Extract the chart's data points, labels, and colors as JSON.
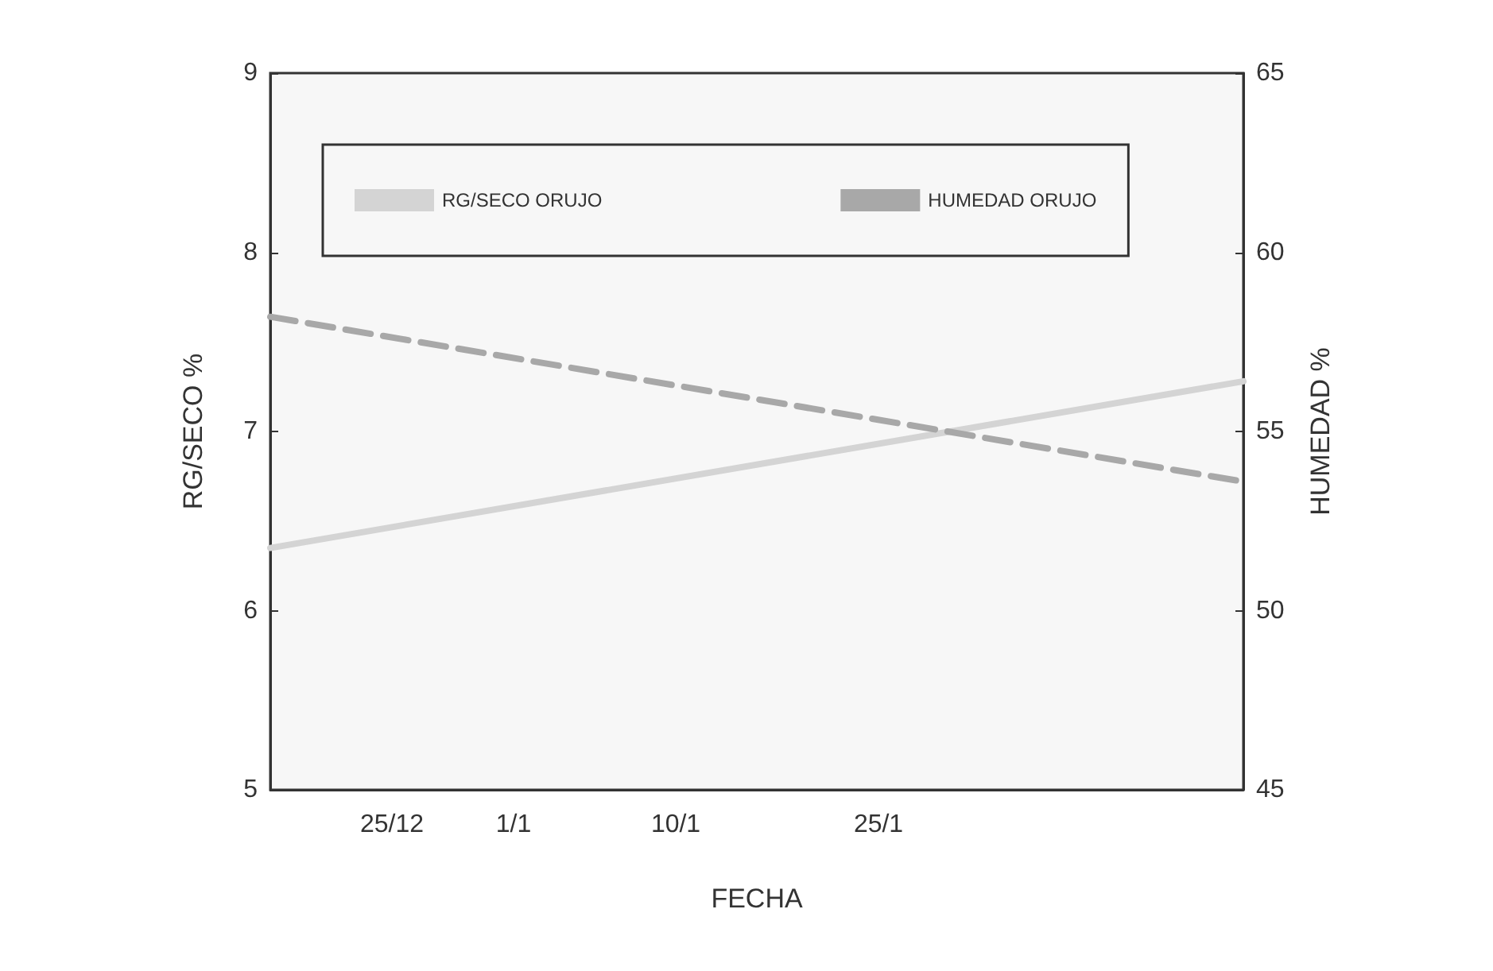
{
  "chart_data": {
    "type": "line",
    "xlabel": "FECHA",
    "ylabel": "RG/SECO %",
    "y2label": "HUMEDAD %",
    "categories": [
      null,
      null,
      null,
      "25/12",
      null,
      null,
      "1/1",
      null,
      null,
      null,
      "10/1",
      null,
      null,
      null,
      null,
      "25/1",
      null,
      null,
      null,
      null,
      null,
      null,
      null,
      null,
      null
    ],
    "series": [
      {
        "name": "RG/SECO ORUJO",
        "color": "#d4d4d4",
        "line_style": "solid",
        "values": [
          6.35,
          null,
          null,
          null,
          null,
          null,
          null,
          null,
          null,
          null,
          null,
          null,
          null,
          null,
          null,
          null,
          null,
          null,
          null,
          null,
          null,
          null,
          null,
          null,
          7.28
        ]
      },
      {
        "name": "HUMEDAD ORUJO",
        "color": "#a8a8a8",
        "line_style": "dashed",
        "axis": "y2",
        "values": [
          58.2,
          null,
          null,
          null,
          null,
          null,
          null,
          null,
          null,
          null,
          null,
          null,
          null,
          null,
          null,
          null,
          null,
          null,
          null,
          null,
          null,
          null,
          null,
          null,
          53.6
        ]
      }
    ],
    "ylim": [
      5,
      9
    ],
    "yticks": [
      5,
      6,
      7,
      8,
      9
    ],
    "y2lim": [
      45,
      65
    ],
    "y2ticks": [
      45,
      50,
      55,
      60,
      65
    ],
    "grid": false,
    "legend": "top",
    "marker": "none"
  }
}
